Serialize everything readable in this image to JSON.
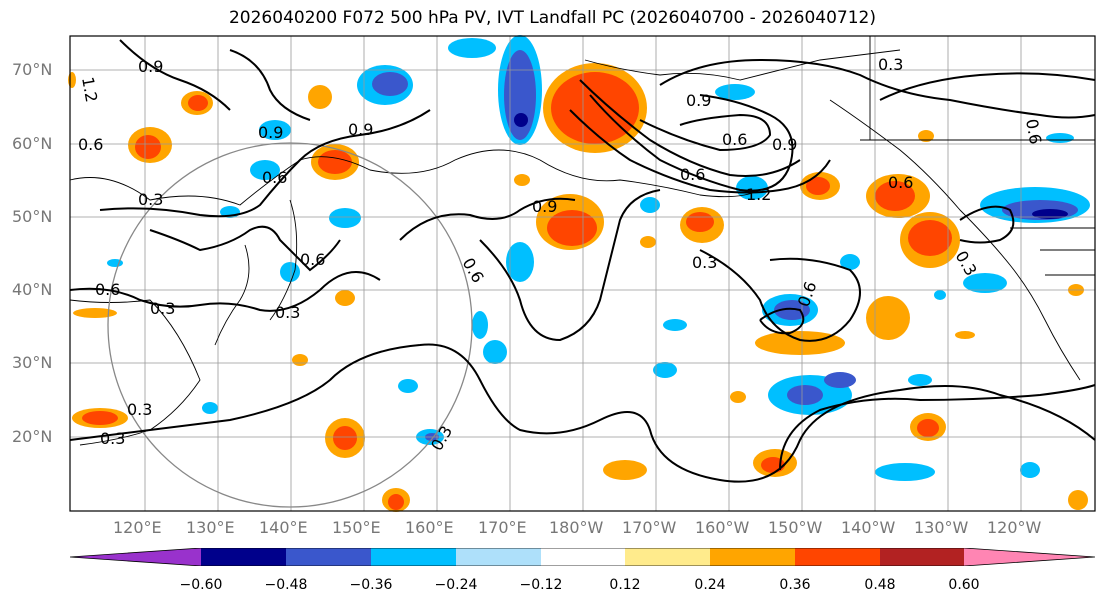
{
  "title": "2026040200 F072 500 hPa PV, IVT Landfall PC (2026040700 - 2026040712)",
  "lat_labels": [
    "70°N",
    "60°N",
    "50°N",
    "40°N",
    "30°N",
    "20°N"
  ],
  "lon_labels": [
    "120°E",
    "130°E",
    "140°E",
    "150°E",
    "160°E",
    "170°E",
    "180°W",
    "170°W",
    "160°W",
    "150°W",
    "140°W",
    "130°W",
    "120°W"
  ],
  "contour_labels": [
    "1.2",
    "0.9",
    "0.6",
    "0.9",
    "0.9",
    "0.6",
    "0.3",
    "0.6",
    "0.3",
    "0.3",
    "0.3",
    "0.6",
    "0.9",
    "0.6",
    "0.3",
    "0.9",
    "0.6",
    "0.6",
    "0.3",
    "0.9",
    "0.6",
    "1.2",
    "0.3",
    "0.3",
    "0.6",
    "0.3",
    "0.6"
  ],
  "colorbar": {
    "tick_labels": [
      "−0.60",
      "−0.48",
      "−0.36",
      "−0.24",
      "−0.12",
      "0.12",
      "0.24",
      "0.36",
      "0.48",
      "0.60"
    ],
    "colors": [
      "#9932cc",
      "#00008b",
      "#3a57cc",
      "#00bfff",
      "#aee0fa",
      "#ffffff",
      "#ffeb8c",
      "#ffa500",
      "#ff4500",
      "#b22222",
      "#ff85b3"
    ]
  }
}
